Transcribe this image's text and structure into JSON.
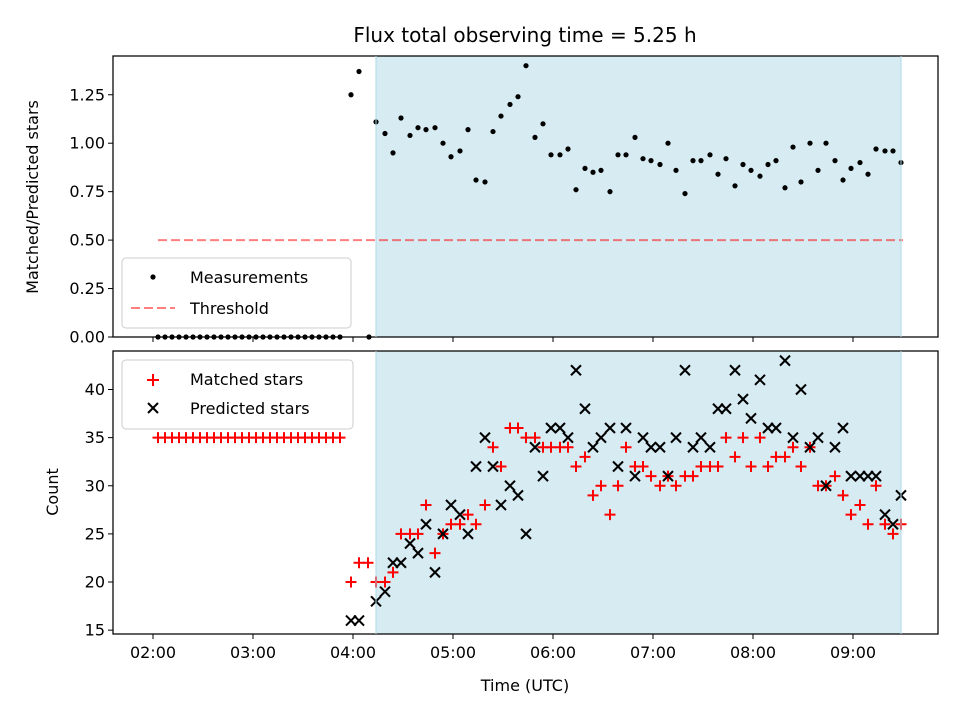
{
  "title": "Flux total observing time = 5.25 h",
  "xlabel": "Time (UTC)",
  "x_ticks": [
    "02:00",
    "03:00",
    "04:00",
    "05:00",
    "06:00",
    "07:00",
    "08:00",
    "09:00"
  ],
  "colors": {
    "shade": "#add8e6",
    "measurement": "#000000",
    "threshold": "#ff0000",
    "matched": "#ff0000",
    "predicted": "#000000"
  },
  "chart_data": [
    {
      "type": "scatter",
      "panel": "top",
      "x_unit": "hours UTC",
      "xlim": [
        1.6,
        9.85
      ],
      "ylim": [
        0,
        1.45
      ],
      "ylabel": "Matched/Predicted stars",
      "y_ticks": [
        "0.00",
        "0.25",
        "0.50",
        "0.75",
        "1.00",
        "1.25"
      ],
      "shaded_interval": [
        4.23,
        9.48
      ],
      "threshold": {
        "name": "Threshold",
        "y": 0.5,
        "x_range": [
          2.05,
          9.5
        ]
      },
      "legend": [
        "Measurements",
        "Threshold"
      ],
      "series": [
        {
          "name": "Measurements",
          "points": [
            [
              2.05,
              0
            ],
            [
              2.12,
              0
            ],
            [
              2.19,
              0
            ],
            [
              2.26,
              0
            ],
            [
              2.33,
              0
            ],
            [
              2.4,
              0
            ],
            [
              2.47,
              0
            ],
            [
              2.54,
              0
            ],
            [
              2.61,
              0
            ],
            [
              2.68,
              0
            ],
            [
              2.75,
              0
            ],
            [
              2.82,
              0
            ],
            [
              2.89,
              0
            ],
            [
              2.96,
              0
            ],
            [
              3.03,
              0
            ],
            [
              3.1,
              0
            ],
            [
              3.17,
              0
            ],
            [
              3.24,
              0
            ],
            [
              3.31,
              0
            ],
            [
              3.38,
              0
            ],
            [
              3.45,
              0
            ],
            [
              3.52,
              0
            ],
            [
              3.59,
              0
            ],
            [
              3.66,
              0
            ],
            [
              3.73,
              0
            ],
            [
              3.8,
              0
            ],
            [
              3.87,
              0
            ],
            [
              4.16,
              0
            ],
            [
              3.98,
              1.25
            ],
            [
              4.06,
              1.37
            ],
            [
              4.23,
              1.11
            ],
            [
              4.32,
              1.05
            ],
            [
              4.4,
              0.95
            ],
            [
              4.48,
              1.13
            ],
            [
              4.57,
              1.04
            ],
            [
              4.65,
              1.08
            ],
            [
              4.73,
              1.07
            ],
            [
              4.82,
              1.08
            ],
            [
              4.9,
              1.0
            ],
            [
              4.98,
              0.93
            ],
            [
              5.07,
              0.96
            ],
            [
              5.15,
              1.07
            ],
            [
              5.23,
              0.81
            ],
            [
              5.32,
              0.8
            ],
            [
              5.4,
              1.06
            ],
            [
              5.48,
              1.14
            ],
            [
              5.57,
              1.2
            ],
            [
              5.65,
              1.24
            ],
            [
              5.73,
              1.4
            ],
            [
              5.82,
              1.03
            ],
            [
              5.9,
              1.1
            ],
            [
              5.98,
              0.94
            ],
            [
              6.07,
              0.94
            ],
            [
              6.15,
              0.97
            ],
            [
              6.23,
              0.76
            ],
            [
              6.32,
              0.87
            ],
            [
              6.4,
              0.85
            ],
            [
              6.48,
              0.86
            ],
            [
              6.57,
              0.75
            ],
            [
              6.65,
              0.94
            ],
            [
              6.73,
              0.94
            ],
            [
              6.82,
              1.03
            ],
            [
              6.9,
              0.92
            ],
            [
              6.98,
              0.91
            ],
            [
              7.07,
              0.89
            ],
            [
              7.15,
              1.0
            ],
            [
              7.23,
              0.86
            ],
            [
              7.32,
              0.74
            ],
            [
              7.4,
              0.91
            ],
            [
              7.48,
              0.91
            ],
            [
              7.57,
              0.94
            ],
            [
              7.65,
              0.84
            ],
            [
              7.73,
              0.92
            ],
            [
              7.82,
              0.78
            ],
            [
              7.9,
              0.89
            ],
            [
              7.98,
              0.86
            ],
            [
              8.07,
              0.83
            ],
            [
              8.15,
              0.89
            ],
            [
              8.23,
              0.91
            ],
            [
              8.32,
              0.77
            ],
            [
              8.4,
              0.98
            ],
            [
              8.48,
              0.8
            ],
            [
              8.57,
              1.0
            ],
            [
              8.65,
              0.86
            ],
            [
              8.73,
              1.0
            ],
            [
              8.82,
              0.91
            ],
            [
              8.9,
              0.81
            ],
            [
              8.98,
              0.87
            ],
            [
              9.07,
              0.9
            ],
            [
              9.15,
              0.84
            ],
            [
              9.23,
              0.97
            ],
            [
              9.32,
              0.96
            ],
            [
              9.4,
              0.96
            ],
            [
              9.48,
              0.9
            ]
          ]
        }
      ]
    },
    {
      "type": "scatter",
      "panel": "bottom",
      "x_unit": "hours UTC",
      "xlim": [
        1.6,
        9.85
      ],
      "ylim": [
        14.6,
        44.0
      ],
      "ylabel": "Count",
      "y_ticks": [
        "15",
        "20",
        "25",
        "30",
        "35",
        "40"
      ],
      "shaded_interval": [
        4.23,
        9.48
      ],
      "legend": [
        "Matched stars",
        "Predicted stars"
      ],
      "series": [
        {
          "name": "Matched stars",
          "points": [
            [
              2.05,
              35
            ],
            [
              2.12,
              35
            ],
            [
              2.19,
              35
            ],
            [
              2.26,
              35
            ],
            [
              2.33,
              35
            ],
            [
              2.4,
              35
            ],
            [
              2.47,
              35
            ],
            [
              2.54,
              35
            ],
            [
              2.61,
              35
            ],
            [
              2.68,
              35
            ],
            [
              2.75,
              35
            ],
            [
              2.82,
              35
            ],
            [
              2.89,
              35
            ],
            [
              2.96,
              35
            ],
            [
              3.03,
              35
            ],
            [
              3.1,
              35
            ],
            [
              3.17,
              35
            ],
            [
              3.24,
              35
            ],
            [
              3.31,
              35
            ],
            [
              3.38,
              35
            ],
            [
              3.45,
              35
            ],
            [
              3.52,
              35
            ],
            [
              3.59,
              35
            ],
            [
              3.66,
              35
            ],
            [
              3.73,
              35
            ],
            [
              3.8,
              35
            ],
            [
              3.87,
              35
            ],
            [
              3.98,
              20
            ],
            [
              4.06,
              22
            ],
            [
              4.15,
              22
            ],
            [
              4.23,
              20
            ],
            [
              4.32,
              20
            ],
            [
              4.4,
              21
            ],
            [
              4.48,
              25
            ],
            [
              4.57,
              25
            ],
            [
              4.65,
              25
            ],
            [
              4.73,
              28
            ],
            [
              4.82,
              23
            ],
            [
              4.9,
              25
            ],
            [
              4.98,
              26
            ],
            [
              5.07,
              26
            ],
            [
              5.15,
              27
            ],
            [
              5.23,
              26
            ],
            [
              5.32,
              28
            ],
            [
              5.4,
              34
            ],
            [
              5.48,
              32
            ],
            [
              5.57,
              36
            ],
            [
              5.65,
              36
            ],
            [
              5.73,
              35
            ],
            [
              5.82,
              35
            ],
            [
              5.9,
              34
            ],
            [
              5.98,
              34
            ],
            [
              6.07,
              34
            ],
            [
              6.15,
              34
            ],
            [
              6.23,
              32
            ],
            [
              6.32,
              33
            ],
            [
              6.4,
              29
            ],
            [
              6.48,
              30
            ],
            [
              6.57,
              27
            ],
            [
              6.65,
              30
            ],
            [
              6.73,
              34
            ],
            [
              6.82,
              32
            ],
            [
              6.9,
              32
            ],
            [
              6.98,
              31
            ],
            [
              7.07,
              30
            ],
            [
              7.15,
              31
            ],
            [
              7.23,
              30
            ],
            [
              7.32,
              31
            ],
            [
              7.4,
              31
            ],
            [
              7.48,
              32
            ],
            [
              7.57,
              32
            ],
            [
              7.65,
              32
            ],
            [
              7.73,
              35
            ],
            [
              7.82,
              33
            ],
            [
              7.9,
              35
            ],
            [
              7.98,
              32
            ],
            [
              8.07,
              35
            ],
            [
              8.15,
              32
            ],
            [
              8.23,
              33
            ],
            [
              8.32,
              33
            ],
            [
              8.4,
              34
            ],
            [
              8.48,
              32
            ],
            [
              8.57,
              34
            ],
            [
              8.65,
              30
            ],
            [
              8.73,
              30
            ],
            [
              8.82,
              31
            ],
            [
              8.9,
              29
            ],
            [
              8.98,
              27
            ],
            [
              9.07,
              28
            ],
            [
              9.15,
              26
            ],
            [
              9.23,
              30
            ],
            [
              9.32,
              26
            ],
            [
              9.4,
              25
            ],
            [
              9.48,
              26
            ]
          ]
        },
        {
          "name": "Predicted stars",
          "points": [
            [
              3.98,
              16
            ],
            [
              4.06,
              16
            ],
            [
              4.23,
              18
            ],
            [
              4.32,
              19
            ],
            [
              4.4,
              22
            ],
            [
              4.48,
              22
            ],
            [
              4.57,
              24
            ],
            [
              4.65,
              23
            ],
            [
              4.73,
              26
            ],
            [
              4.82,
              21
            ],
            [
              4.9,
              25
            ],
            [
              4.98,
              28
            ],
            [
              5.07,
              27
            ],
            [
              5.15,
              25
            ],
            [
              5.23,
              32
            ],
            [
              5.32,
              35
            ],
            [
              5.4,
              32
            ],
            [
              5.48,
              28
            ],
            [
              5.57,
              30
            ],
            [
              5.65,
              29
            ],
            [
              5.73,
              25
            ],
            [
              5.82,
              34
            ],
            [
              5.9,
              31
            ],
            [
              5.98,
              36
            ],
            [
              6.07,
              36
            ],
            [
              6.15,
              35
            ],
            [
              6.23,
              42
            ],
            [
              6.32,
              38
            ],
            [
              6.4,
              34
            ],
            [
              6.48,
              35
            ],
            [
              6.57,
              36
            ],
            [
              6.65,
              32
            ],
            [
              6.73,
              36
            ],
            [
              6.82,
              31
            ],
            [
              6.9,
              35
            ],
            [
              6.98,
              34
            ],
            [
              7.07,
              34
            ],
            [
              7.15,
              31
            ],
            [
              7.23,
              35
            ],
            [
              7.32,
              42
            ],
            [
              7.4,
              34
            ],
            [
              7.48,
              35
            ],
            [
              7.57,
              34
            ],
            [
              7.65,
              38
            ],
            [
              7.73,
              38
            ],
            [
              7.82,
              42
            ],
            [
              7.9,
              39
            ],
            [
              7.98,
              37
            ],
            [
              8.07,
              41
            ],
            [
              8.15,
              36
            ],
            [
              8.23,
              36
            ],
            [
              8.32,
              43
            ],
            [
              8.4,
              35
            ],
            [
              8.48,
              40
            ],
            [
              8.57,
              34
            ],
            [
              8.65,
              35
            ],
            [
              8.73,
              30
            ],
            [
              8.82,
              34
            ],
            [
              8.9,
              36
            ],
            [
              8.98,
              31
            ],
            [
              9.07,
              31
            ],
            [
              9.15,
              31
            ],
            [
              9.23,
              31
            ],
            [
              9.32,
              27
            ],
            [
              9.4,
              26
            ],
            [
              9.48,
              29
            ]
          ]
        }
      ]
    }
  ]
}
